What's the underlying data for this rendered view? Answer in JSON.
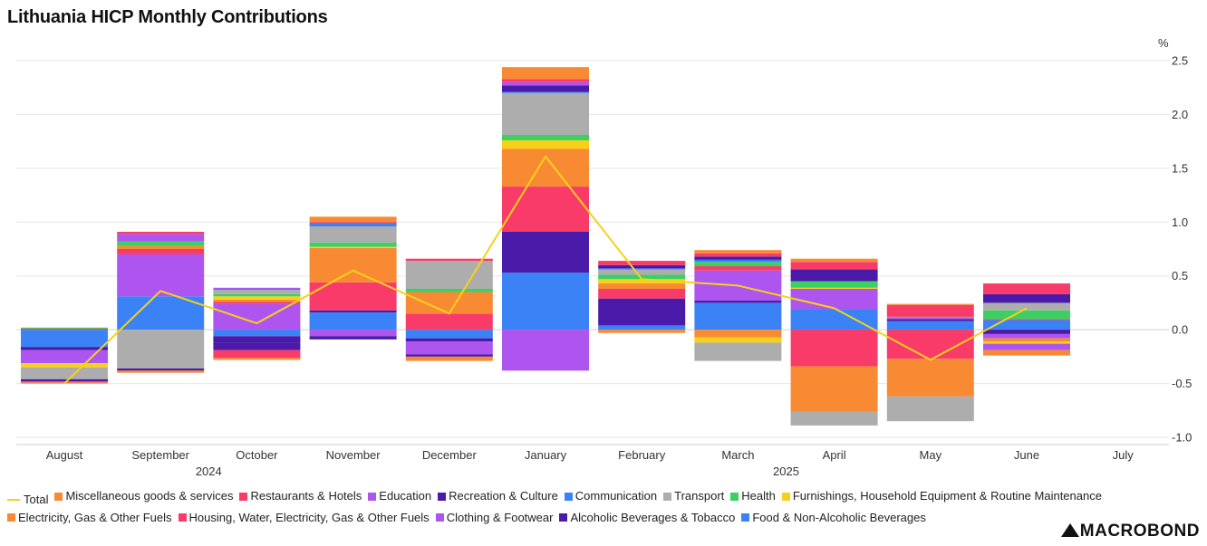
{
  "page": {
    "title": "Lithuania HICP Monthly Contributions",
    "logo": "MACROBOND"
  },
  "chart_data": {
    "type": "bar",
    "stacked": true,
    "title": "Lithuania HICP Monthly Contributions",
    "unit": "%",
    "categories": [
      "August",
      "September",
      "October",
      "November",
      "December",
      "January",
      "February",
      "March",
      "April",
      "May",
      "June",
      "July"
    ],
    "year_labels": [
      {
        "label": "2024",
        "category_index": 1.5
      },
      {
        "label": "2025",
        "category_index": 7.5
      }
    ],
    "ylim": [
      -1.0,
      2.5
    ],
    "yticks": [
      2.5,
      2.0,
      1.5,
      1.0,
      0.5,
      0.0,
      -0.5,
      -1.0
    ],
    "ytick_labels": [
      "2.5",
      "2.0",
      "1.5",
      "1.0",
      "0.5",
      "0.0",
      "-0.5",
      "-1.0"
    ],
    "grid": true,
    "legend_position": "bottom",
    "series": [
      {
        "name": "Food & Non-Alcoholic Beverages",
        "color": "#3b82f6",
        "values": [
          -0.16,
          0.31,
          -0.06,
          0.16,
          -0.08,
          0.53,
          0.04,
          0.25,
          0.19,
          0.08,
          0.09,
          0
        ]
      },
      {
        "name": "Alcoholic Beverages & Tobacco",
        "color": "#4a1aa8",
        "values": [
          -0.03,
          0,
          -0.06,
          0.02,
          -0.03,
          0.38,
          0.25,
          0.02,
          0,
          0.02,
          -0.04,
          0
        ]
      },
      {
        "name": "Clothing & Footwear",
        "color": "#ad55ee",
        "values": [
          -0.12,
          0.39,
          0.24,
          -0.06,
          -0.12,
          -0.38,
          0,
          0.28,
          0.19,
          0.01,
          -0.04,
          0
        ]
      },
      {
        "name": "Housing, Water, Electricity, Gas & Other Fuels",
        "color": "#f93b6a",
        "values": [
          0.01,
          0.05,
          0.02,
          0.26,
          0.15,
          0.42,
          0.09,
          0.04,
          -0.34,
          -0.27,
          0.01,
          0
        ]
      },
      {
        "name": "Electricity, Gas & Other Fuels",
        "color": "#f98a34",
        "values": [
          0,
          0.03,
          0.02,
          0.32,
          0.2,
          0.35,
          0.05,
          -0.07,
          -0.42,
          -0.35,
          -0.03,
          0
        ]
      },
      {
        "name": "Furnishings, Household Equipment & Routine Maintenance",
        "color": "#f6d11a",
        "values": [
          -0.04,
          0,
          0.03,
          0.01,
          0,
          0.08,
          0.04,
          -0.05,
          0.01,
          0,
          -0.02,
          0
        ]
      },
      {
        "name": "Health",
        "color": "#3bd062",
        "values": [
          0.01,
          0.04,
          0.02,
          0.04,
          0.03,
          0.05,
          0.04,
          0.04,
          0.06,
          0.01,
          0.08,
          0
        ]
      },
      {
        "name": "Transport",
        "color": "#adadad",
        "values": [
          -0.11,
          -0.36,
          0.04,
          0.15,
          0.26,
          0.39,
          0.05,
          -0.17,
          -0.13,
          -0.23,
          0.07,
          0
        ]
      },
      {
        "name": "Communication",
        "color": "#3b82f6",
        "values": [
          0,
          0,
          0.01,
          0.03,
          0,
          0.01,
          0.01,
          0.02,
          0,
          0,
          0,
          0
        ]
      },
      {
        "name": "Recreation & Culture",
        "color": "#4a1aa8",
        "values": [
          -0.02,
          -0.02,
          -0.07,
          -0.03,
          -0.02,
          0.06,
          0.03,
          0.03,
          0.11,
          0,
          0.08,
          0
        ]
      },
      {
        "name": "Education",
        "color": "#ad55ee",
        "values": [
          0,
          0.07,
          0.01,
          0,
          0,
          0.03,
          0,
          0,
          0,
          0,
          -0.06,
          0
        ]
      },
      {
        "name": "Restaurants & Hotels",
        "color": "#f93b6a",
        "values": [
          -0.01,
          0.02,
          -0.07,
          0.01,
          0.02,
          0.03,
          0.04,
          0.03,
          0.07,
          0.11,
          0.1,
          0
        ]
      },
      {
        "name": "Miscellaneous goods & services",
        "color": "#f98a34",
        "values": [
          -0.01,
          -0.02,
          -0.02,
          0.05,
          -0.04,
          0.11,
          -0.03,
          0.03,
          0.03,
          0.01,
          -0.05,
          0
        ]
      }
    ],
    "total": {
      "name": "Total",
      "color": "#f6d11a",
      "values": [
        -0.5,
        0.36,
        0.06,
        0.55,
        0.15,
        1.61,
        0.47,
        0.41,
        0.2,
        -0.28,
        0.2,
        null
      ]
    }
  },
  "legend": {
    "row1": [
      {
        "label": "Total",
        "color": "#f6d11a",
        "kind": "line"
      },
      {
        "label": "Miscellaneous goods & services",
        "color": "#f98a34",
        "kind": "box"
      },
      {
        "label": "Restaurants & Hotels",
        "color": "#f93b6a",
        "kind": "box"
      },
      {
        "label": "Education",
        "color": "#ad55ee",
        "kind": "box"
      },
      {
        "label": "Recreation & Culture",
        "color": "#4a1aa8",
        "kind": "box"
      },
      {
        "label": "Communication",
        "color": "#3b82f6",
        "kind": "box"
      },
      {
        "label": "Transport",
        "color": "#adadad",
        "kind": "box"
      },
      {
        "label": "Health",
        "color": "#3bd062",
        "kind": "box"
      },
      {
        "label": "Furnishings, Household Equipment & Routine Maintenance",
        "color": "#f6d11a",
        "kind": "box"
      }
    ],
    "row2": [
      {
        "label": "Electricity, Gas & Other Fuels",
        "color": "#f98a34",
        "kind": "box"
      },
      {
        "label": "Housing, Water, Electricity, Gas & Other Fuels",
        "color": "#f93b6a",
        "kind": "box"
      },
      {
        "label": "Clothing & Footwear",
        "color": "#ad55ee",
        "kind": "box"
      },
      {
        "label": "Alcoholic Beverages & Tobacco",
        "color": "#4a1aa8",
        "kind": "box"
      },
      {
        "label": "Food & Non-Alcoholic Beverages",
        "color": "#3b82f6",
        "kind": "box"
      }
    ]
  }
}
